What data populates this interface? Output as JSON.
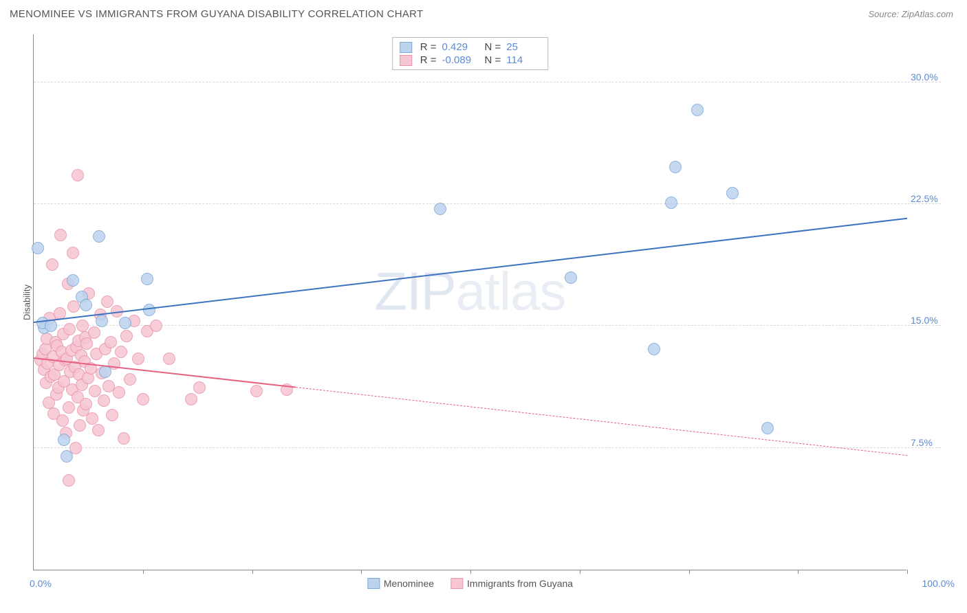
{
  "header": {
    "title": "MENOMINEE VS IMMIGRANTS FROM GUYANA DISABILITY CORRELATION CHART",
    "source": "Source: ZipAtlas.com"
  },
  "axes": {
    "y_title": "Disability",
    "x_min_label": "0.0%",
    "x_max_label": "100.0%",
    "xlim": [
      0,
      100
    ],
    "ylim": [
      0,
      33
    ],
    "y_ticks": [
      {
        "v": 7.5,
        "label": "7.5%"
      },
      {
        "v": 15.0,
        "label": "15.0%"
      },
      {
        "v": 22.5,
        "label": "22.5%"
      },
      {
        "v": 30.0,
        "label": "30.0%"
      }
    ],
    "x_ticks_at": [
      12.5,
      25,
      37.5,
      50,
      62.5,
      75,
      87.5,
      100
    ],
    "grid_color": "#d8d8d8",
    "axis_color": "#888888"
  },
  "watermark": {
    "bold": "ZIP",
    "light": "atlas"
  },
  "series": [
    {
      "id": "menominee",
      "label": "Menominee",
      "fill": "#bcd3ee",
      "stroke": "#7ea6d6",
      "trend": {
        "color": "#3d72c2",
        "width": 2.5,
        "x1": 0,
        "y1": 15.2,
        "x2": 100,
        "y2": 21.6,
        "dash_after_x": null
      },
      "R": "0.429",
      "N": "25",
      "points": [
        {
          "x": 0.5,
          "y": 19.8
        },
        {
          "x": 1.2,
          "y": 14.9
        },
        {
          "x": 1.0,
          "y": 15.2
        },
        {
          "x": 2.0,
          "y": 15.0
        },
        {
          "x": 3.5,
          "y": 8.0
        },
        {
          "x": 3.8,
          "y": 7.0
        },
        {
          "x": 4.5,
          "y": 17.8
        },
        {
          "x": 5.5,
          "y": 16.8
        },
        {
          "x": 6.0,
          "y": 16.3
        },
        {
          "x": 7.5,
          "y": 20.5
        },
        {
          "x": 7.8,
          "y": 15.3
        },
        {
          "x": 8.2,
          "y": 12.2
        },
        {
          "x": 10.5,
          "y": 15.2
        },
        {
          "x": 13.0,
          "y": 17.9
        },
        {
          "x": 13.2,
          "y": 16.0
        },
        {
          "x": 46.5,
          "y": 22.2
        },
        {
          "x": 61.5,
          "y": 18.0
        },
        {
          "x": 71.0,
          "y": 13.6
        },
        {
          "x": 73.0,
          "y": 22.6
        },
        {
          "x": 73.5,
          "y": 24.8
        },
        {
          "x": 76.0,
          "y": 28.3
        },
        {
          "x": 80.0,
          "y": 23.2
        },
        {
          "x": 84.0,
          "y": 8.7
        }
      ]
    },
    {
      "id": "guyana",
      "label": "Immigrants from Guyana",
      "fill": "#f6c6d2",
      "stroke": "#e893ab",
      "trend": {
        "color": "#e6607f",
        "width": 2,
        "x1": 0,
        "y1": 13.0,
        "x2": 100,
        "y2": 7.0,
        "dash_after_x": 30
      },
      "R": "-0.089",
      "N": "114",
      "points": [
        {
          "x": 0.8,
          "y": 12.9
        },
        {
          "x": 1.0,
          "y": 13.3
        },
        {
          "x": 1.2,
          "y": 12.3
        },
        {
          "x": 1.3,
          "y": 13.6
        },
        {
          "x": 1.4,
          "y": 11.5
        },
        {
          "x": 1.5,
          "y": 14.2
        },
        {
          "x": 1.6,
          "y": 12.7
        },
        {
          "x": 1.7,
          "y": 10.3
        },
        {
          "x": 1.8,
          "y": 15.5
        },
        {
          "x": 2.0,
          "y": 11.9
        },
        {
          "x": 2.1,
          "y": 18.8
        },
        {
          "x": 2.2,
          "y": 13.1
        },
        {
          "x": 2.3,
          "y": 9.6
        },
        {
          "x": 2.4,
          "y": 12.0
        },
        {
          "x": 2.5,
          "y": 14.0
        },
        {
          "x": 2.6,
          "y": 10.8
        },
        {
          "x": 2.7,
          "y": 13.8
        },
        {
          "x": 2.8,
          "y": 11.2
        },
        {
          "x": 2.9,
          "y": 12.6
        },
        {
          "x": 3.0,
          "y": 15.8
        },
        {
          "x": 3.1,
          "y": 20.6
        },
        {
          "x": 3.2,
          "y": 13.4
        },
        {
          "x": 3.3,
          "y": 9.2
        },
        {
          "x": 3.4,
          "y": 14.5
        },
        {
          "x": 3.5,
          "y": 11.6
        },
        {
          "x": 3.6,
          "y": 12.9
        },
        {
          "x": 3.7,
          "y": 8.4
        },
        {
          "x": 3.8,
          "y": 13.0
        },
        {
          "x": 3.9,
          "y": 17.6
        },
        {
          "x": 4.0,
          "y": 10.0
        },
        {
          "x": 4.1,
          "y": 14.8
        },
        {
          "x": 4.2,
          "y": 12.2
        },
        {
          "x": 4.3,
          "y": 13.5
        },
        {
          "x": 4.4,
          "y": 11.1
        },
        {
          "x": 4.5,
          "y": 19.5
        },
        {
          "x": 4.6,
          "y": 16.2
        },
        {
          "x": 4.7,
          "y": 12.5
        },
        {
          "x": 4.8,
          "y": 7.5
        },
        {
          "x": 4.9,
          "y": 13.7
        },
        {
          "x": 5.0,
          "y": 10.6
        },
        {
          "x": 5.1,
          "y": 14.1
        },
        {
          "x": 5.2,
          "y": 12.0
        },
        {
          "x": 5.3,
          "y": 8.9
        },
        {
          "x": 5.4,
          "y": 13.2
        },
        {
          "x": 5.5,
          "y": 11.4
        },
        {
          "x": 5.6,
          "y": 15.0
        },
        {
          "x": 5.7,
          "y": 9.8
        },
        {
          "x": 5.8,
          "y": 12.8
        },
        {
          "x": 5.9,
          "y": 14.3
        },
        {
          "x": 6.0,
          "y": 10.2
        },
        {
          "x": 6.1,
          "y": 13.9
        },
        {
          "x": 6.2,
          "y": 11.8
        },
        {
          "x": 6.3,
          "y": 17.0
        },
        {
          "x": 6.5,
          "y": 12.4
        },
        {
          "x": 6.7,
          "y": 9.3
        },
        {
          "x": 6.9,
          "y": 14.6
        },
        {
          "x": 7.0,
          "y": 11.0
        },
        {
          "x": 7.2,
          "y": 13.3
        },
        {
          "x": 7.4,
          "y": 8.6
        },
        {
          "x": 7.6,
          "y": 15.7
        },
        {
          "x": 7.8,
          "y": 12.1
        },
        {
          "x": 8.0,
          "y": 10.4
        },
        {
          "x": 8.2,
          "y": 13.6
        },
        {
          "x": 8.4,
          "y": 16.5
        },
        {
          "x": 8.6,
          "y": 11.3
        },
        {
          "x": 8.8,
          "y": 14.0
        },
        {
          "x": 9.0,
          "y": 9.5
        },
        {
          "x": 9.2,
          "y": 12.7
        },
        {
          "x": 9.5,
          "y": 15.9
        },
        {
          "x": 9.8,
          "y": 10.9
        },
        {
          "x": 10.0,
          "y": 13.4
        },
        {
          "x": 10.3,
          "y": 8.1
        },
        {
          "x": 10.6,
          "y": 14.4
        },
        {
          "x": 11.0,
          "y": 11.7
        },
        {
          "x": 11.5,
          "y": 15.3
        },
        {
          "x": 12.0,
          "y": 13.0
        },
        {
          "x": 12.5,
          "y": 10.5
        },
        {
          "x": 13.0,
          "y": 14.7
        },
        {
          "x": 4.0,
          "y": 5.5
        },
        {
          "x": 5.0,
          "y": 24.3
        },
        {
          "x": 14.0,
          "y": 15.0
        },
        {
          "x": 15.5,
          "y": 13.0
        },
        {
          "x": 18.0,
          "y": 10.5
        },
        {
          "x": 19.0,
          "y": 11.2
        },
        {
          "x": 25.5,
          "y": 11.0
        },
        {
          "x": 29.0,
          "y": 11.1
        }
      ]
    }
  ],
  "legend": {
    "items": [
      {
        "label": "Menominee",
        "fill": "#bcd3ee",
        "stroke": "#7ea6d6"
      },
      {
        "label": "Immigrants from Guyana",
        "fill": "#f6c6d2",
        "stroke": "#e893ab"
      }
    ]
  }
}
